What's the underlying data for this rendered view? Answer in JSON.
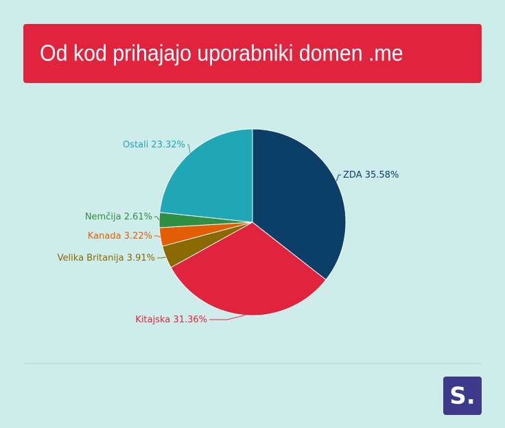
{
  "chart_data": {
    "type": "pie",
    "title": "Od kod prihajajo uporabniki domen .me",
    "categories": [
      "ZDA",
      "Kitajska",
      "Velika Britanija",
      "Kanada",
      "Nemčija",
      "Ostali"
    ],
    "values": [
      35.58,
      31.36,
      3.91,
      3.22,
      2.61,
      23.32
    ],
    "value_labels": [
      "35.58%",
      "31.36%",
      "3.91%",
      "3.22%",
      "2.61%",
      "23.32%"
    ],
    "colors": [
      "#0b3f68",
      "#e0243e",
      "#8a6a00",
      "#e35d05",
      "#2f8f45",
      "#20a7b6"
    ]
  },
  "logo": "S."
}
